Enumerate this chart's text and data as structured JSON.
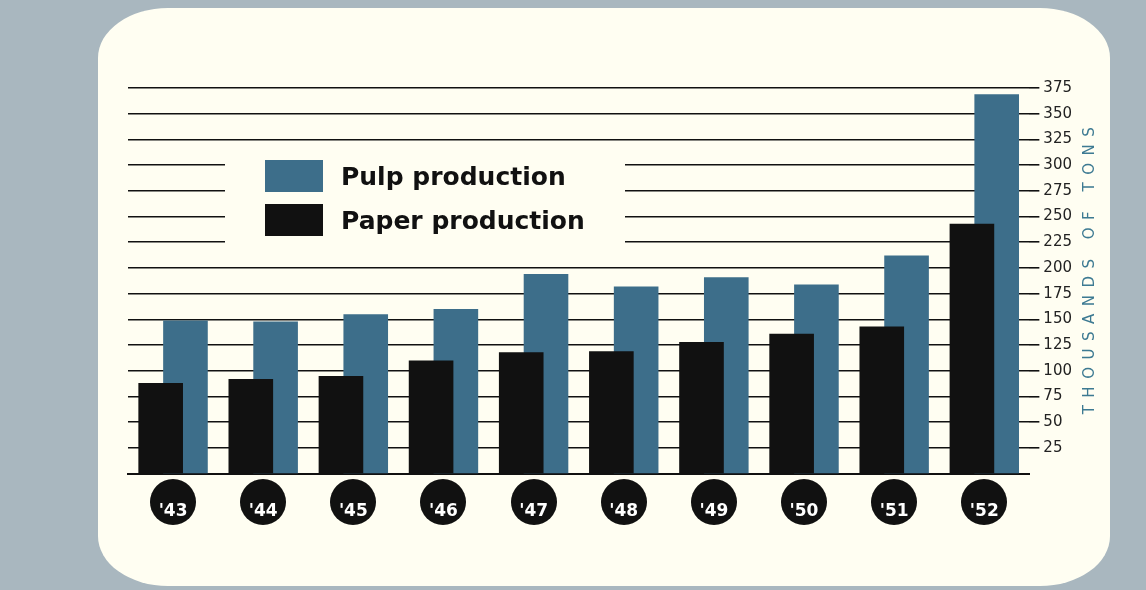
{
  "chart_data": {
    "type": "bar",
    "categories": [
      "'43",
      "'44",
      "'45",
      "'46",
      "'47",
      "'48",
      "'49",
      "'50",
      "'51",
      "'52"
    ],
    "series": [
      {
        "name": "Pulp production",
        "color": "#3d6e8a",
        "values": [
          149,
          148,
          155,
          160,
          194,
          182,
          191,
          184,
          212,
          369
        ]
      },
      {
        "name": "Paper production",
        "color": "#111111",
        "values": [
          88,
          92,
          95,
          110,
          118,
          119,
          128,
          136,
          143,
          243
        ]
      }
    ],
    "ylabel": "THOUSANDS OF TONS",
    "ylim": [
      0,
      375
    ],
    "yticks": [
      25,
      50,
      75,
      100,
      125,
      150,
      175,
      200,
      225,
      250,
      275,
      300,
      325,
      350,
      375
    ],
    "grid": "y",
    "legend": "top left"
  }
}
